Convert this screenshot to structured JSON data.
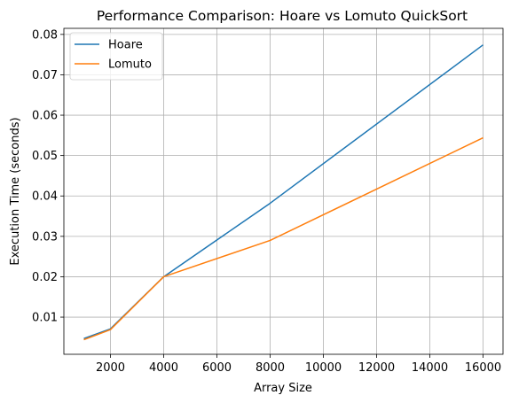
{
  "chart_data": {
    "type": "line",
    "title": "Performance Comparison: Hoare vs Lomuto QuickSort",
    "xlabel": "Array Size",
    "ylabel": "Execution Time (seconds)",
    "x": [
      1000,
      2000,
      4000,
      8000,
      16000
    ],
    "xlim": [
      250,
      16750
    ],
    "ylim": [
      0.0008,
      0.0815
    ],
    "xticks": [
      2000,
      4000,
      6000,
      8000,
      10000,
      12000,
      14000,
      16000
    ],
    "yticks": [
      0.01,
      0.02,
      0.03,
      0.04,
      0.05,
      0.06,
      0.07,
      0.08
    ],
    "grid": true,
    "legend_position": "upper-left",
    "series": [
      {
        "name": "Hoare",
        "color": "#1f77b4",
        "values": [
          0.0047,
          0.0071,
          0.02,
          0.0382,
          0.0774
        ]
      },
      {
        "name": "Lomuto",
        "color": "#ff7f0e",
        "values": [
          0.0044,
          0.0069,
          0.02,
          0.029,
          0.0544
        ]
      }
    ]
  }
}
